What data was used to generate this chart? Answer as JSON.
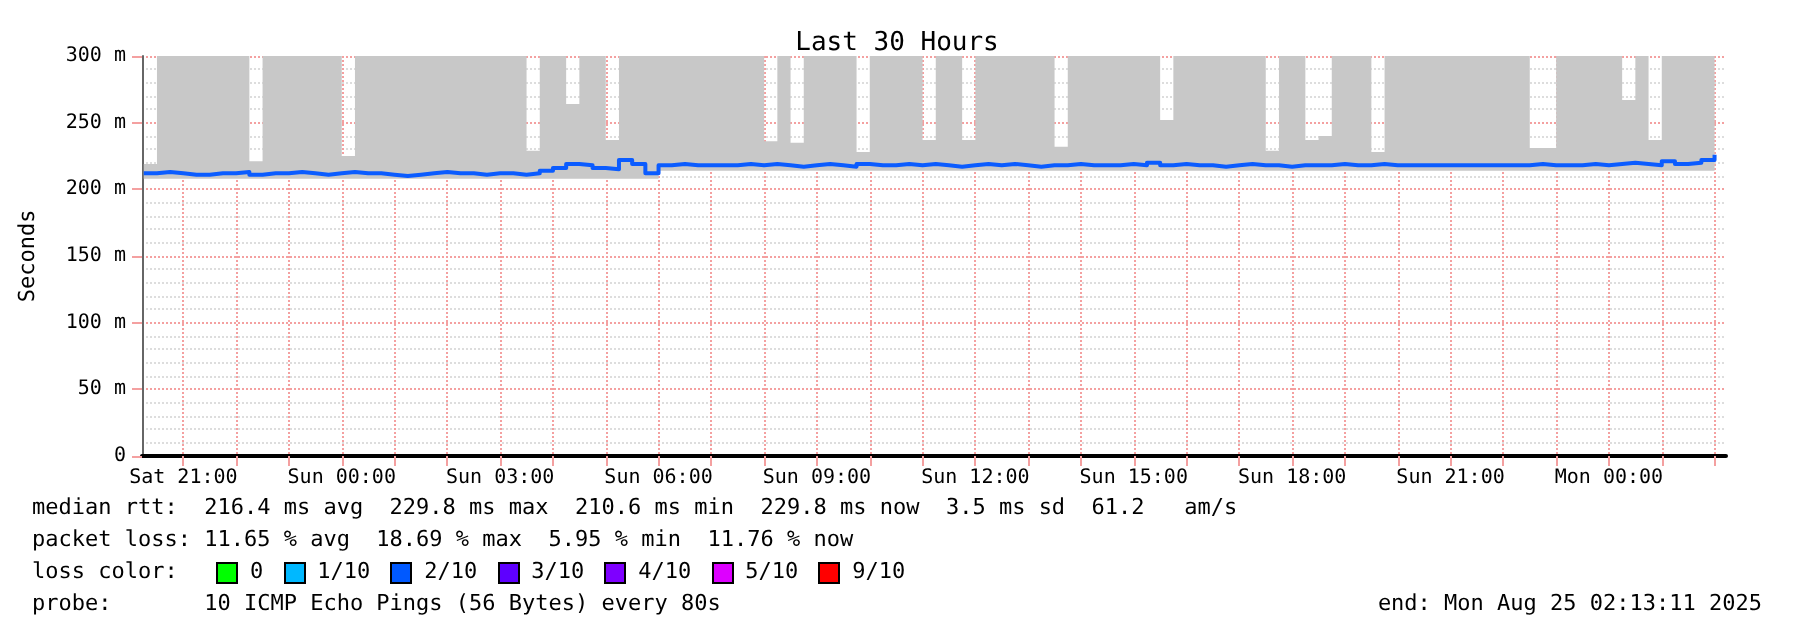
{
  "chart_data": {
    "type": "step",
    "title": "Last 30 Hours",
    "ylabel": "Seconds",
    "x": [
      "2025-08-23T20:15",
      "2025-08-23T20:30",
      "2025-08-23T20:45",
      "2025-08-23T21:00",
      "2025-08-23T21:15",
      "2025-08-23T21:30",
      "2025-08-23T21:45",
      "2025-08-23T22:00",
      "2025-08-23T22:15",
      "2025-08-23T22:30",
      "2025-08-23T22:45",
      "2025-08-23T23:00",
      "2025-08-23T23:15",
      "2025-08-23T23:30",
      "2025-08-23T23:45",
      "2025-08-24T00:00",
      "2025-08-24T00:15",
      "2025-08-24T00:30",
      "2025-08-24T00:45",
      "2025-08-24T01:00",
      "2025-08-24T01:15",
      "2025-08-24T01:30",
      "2025-08-24T01:45",
      "2025-08-24T02:00",
      "2025-08-24T02:15",
      "2025-08-24T02:30",
      "2025-08-24T02:45",
      "2025-08-24T03:00",
      "2025-08-24T03:15",
      "2025-08-24T03:30",
      "2025-08-24T03:45",
      "2025-08-24T04:00",
      "2025-08-24T04:15",
      "2025-08-24T04:30",
      "2025-08-24T04:45",
      "2025-08-24T05:00",
      "2025-08-24T05:15",
      "2025-08-24T05:30",
      "2025-08-24T05:45",
      "2025-08-24T06:00",
      "2025-08-24T06:15",
      "2025-08-24T06:30",
      "2025-08-24T06:45",
      "2025-08-24T07:00",
      "2025-08-24T07:15",
      "2025-08-24T07:30",
      "2025-08-24T07:45",
      "2025-08-24T08:00",
      "2025-08-24T08:15",
      "2025-08-24T08:30",
      "2025-08-24T08:45",
      "2025-08-24T09:00",
      "2025-08-24T09:15",
      "2025-08-24T09:30",
      "2025-08-24T09:45",
      "2025-08-24T10:00",
      "2025-08-24T10:15",
      "2025-08-24T10:30",
      "2025-08-24T10:45",
      "2025-08-24T11:00",
      "2025-08-24T11:15",
      "2025-08-24T11:30",
      "2025-08-24T11:45",
      "2025-08-24T12:00",
      "2025-08-24T12:15",
      "2025-08-24T12:30",
      "2025-08-24T12:45",
      "2025-08-24T13:00",
      "2025-08-24T13:15",
      "2025-08-24T13:30",
      "2025-08-24T13:45",
      "2025-08-24T14:00",
      "2025-08-24T14:15",
      "2025-08-24T14:30",
      "2025-08-24T14:45",
      "2025-08-24T15:00",
      "2025-08-24T15:15",
      "2025-08-24T15:30",
      "2025-08-24T15:45",
      "2025-08-24T16:00",
      "2025-08-24T16:15",
      "2025-08-24T16:30",
      "2025-08-24T16:45",
      "2025-08-24T17:00",
      "2025-08-24T17:15",
      "2025-08-24T17:30",
      "2025-08-24T17:45",
      "2025-08-24T18:00",
      "2025-08-24T18:15",
      "2025-08-24T18:30",
      "2025-08-24T18:45",
      "2025-08-24T19:00",
      "2025-08-24T19:15",
      "2025-08-24T19:30",
      "2025-08-24T19:45",
      "2025-08-24T20:00",
      "2025-08-24T20:15",
      "2025-08-24T20:30",
      "2025-08-24T20:45",
      "2025-08-24T21:00",
      "2025-08-24T21:15",
      "2025-08-24T21:30",
      "2025-08-24T21:45",
      "2025-08-24T22:00",
      "2025-08-24T22:15",
      "2025-08-24T22:30",
      "2025-08-24T22:45",
      "2025-08-24T23:00",
      "2025-08-24T23:15",
      "2025-08-24T23:30",
      "2025-08-24T23:45",
      "2025-08-25T00:00",
      "2025-08-25T00:15",
      "2025-08-25T00:30",
      "2025-08-25T00:45",
      "2025-08-25T01:00",
      "2025-08-25T01:15",
      "2025-08-25T01:30",
      "2025-08-25T01:45",
      "2025-08-25T02:00"
    ],
    "series": [
      {
        "color": "#0b5cff",
        "values": [
          212,
          213,
          212,
          211,
          211,
          212,
          212,
          213,
          211,
          212,
          212,
          213,
          212,
          211,
          212,
          213,
          212,
          212,
          211,
          210,
          211,
          212,
          213,
          212,
          212,
          211,
          212,
          212,
          211,
          212,
          214,
          216,
          219,
          218,
          216,
          215,
          222,
          219,
          212,
          218,
          219,
          218,
          218,
          218,
          218,
          219,
          218,
          219,
          218,
          217,
          218,
          219,
          218,
          217,
          219,
          218,
          218,
          219,
          218,
          219,
          218,
          217,
          218,
          219,
          218,
          219,
          218,
          217,
          218,
          218,
          219,
          218,
          218,
          218,
          219,
          218,
          220,
          218,
          219,
          218,
          218,
          217,
          218,
          219,
          218,
          218,
          217,
          218,
          218,
          218,
          219,
          218,
          218,
          219,
          218,
          218,
          218,
          218,
          218,
          218,
          218,
          218,
          218,
          218,
          218,
          219,
          218,
          218,
          218,
          219,
          218,
          219,
          220,
          219,
          218,
          221,
          219,
          220,
          222,
          226
        ],
        "lower": [
          208,
          208,
          208,
          208,
          208,
          208,
          208,
          208,
          208,
          208,
          208,
          208,
          208,
          208,
          208,
          208,
          208,
          208,
          208,
          208,
          208,
          208,
          208,
          208,
          208,
          208,
          208,
          208,
          208,
          208,
          208,
          208,
          208,
          208,
          208,
          208,
          208,
          208,
          208,
          214,
          214,
          214,
          214,
          214,
          214,
          214,
          214,
          214,
          214,
          214,
          214,
          214,
          214,
          214,
          214,
          214,
          214,
          214,
          214,
          214,
          214,
          214,
          214,
          214,
          214,
          214,
          214,
          214,
          214,
          214,
          214,
          214,
          214,
          214,
          214,
          214,
          214,
          214,
          214,
          214,
          214,
          214,
          214,
          214,
          214,
          214,
          214,
          214,
          214,
          214,
          214,
          214,
          214,
          214,
          214,
          214,
          214,
          214,
          214,
          214,
          214,
          214,
          214,
          214,
          214,
          214,
          214,
          214,
          214,
          214,
          214,
          214,
          214,
          214,
          214,
          214,
          214,
          214,
          214,
          214
        ],
        "upper": [
          219,
          300,
          300,
          300,
          300,
          300,
          300,
          300,
          221,
          300,
          300,
          300,
          300,
          300,
          300,
          225,
          300,
          300,
          300,
          300,
          300,
          300,
          300,
          300,
          300,
          300,
          300,
          300,
          300,
          229,
          300,
          300,
          264,
          300,
          300,
          237,
          300,
          300,
          300,
          300,
          300,
          300,
          300,
          300,
          300,
          300,
          300,
          236,
          300,
          235,
          300,
          300,
          300,
          300,
          228,
          300,
          300,
          300,
          300,
          237,
          300,
          300,
          237,
          300,
          300,
          300,
          300,
          300,
          300,
          232,
          300,
          300,
          300,
          300,
          300,
          300,
          300,
          252,
          300,
          300,
          300,
          300,
          300,
          300,
          300,
          229,
          300,
          300,
          237,
          240,
          300,
          300,
          300,
          228,
          300,
          300,
          300,
          300,
          300,
          300,
          300,
          300,
          300,
          300,
          300,
          231,
          231,
          300,
          300,
          300,
          300,
          300,
          267,
          300,
          237,
          300,
          300,
          300,
          300,
          300
        ]
      }
    ],
    "xlim": [
      "2025-08-23T20:13",
      "2025-08-25T02:13"
    ],
    "xticks": [
      {
        "value": "2025-08-23T21:00",
        "label": "Sat 21:00"
      },
      {
        "value": "2025-08-23T22:00",
        "label": null
      },
      {
        "value": "2025-08-23T23:00",
        "label": null
      },
      {
        "value": "2025-08-24T00:00",
        "label": "Sun 00:00"
      },
      {
        "value": "2025-08-24T01:00",
        "label": null
      },
      {
        "value": "2025-08-24T02:00",
        "label": null
      },
      {
        "value": "2025-08-24T03:00",
        "label": "Sun 03:00"
      },
      {
        "value": "2025-08-24T04:00",
        "label": null
      },
      {
        "value": "2025-08-24T05:00",
        "label": null
      },
      {
        "value": "2025-08-24T06:00",
        "label": "Sun 06:00"
      },
      {
        "value": "2025-08-24T07:00",
        "label": null
      },
      {
        "value": "2025-08-24T08:00",
        "label": null
      },
      {
        "value": "2025-08-24T09:00",
        "label": "Sun 09:00"
      },
      {
        "value": "2025-08-24T10:00",
        "label": null
      },
      {
        "value": "2025-08-24T11:00",
        "label": null
      },
      {
        "value": "2025-08-24T12:00",
        "label": "Sun 12:00"
      },
      {
        "value": "2025-08-24T13:00",
        "label": null
      },
      {
        "value": "2025-08-24T14:00",
        "label": null
      },
      {
        "value": "2025-08-24T15:00",
        "label": "Sun 15:00"
      },
      {
        "value": "2025-08-24T16:00",
        "label": null
      },
      {
        "value": "2025-08-24T17:00",
        "label": null
      },
      {
        "value": "2025-08-24T18:00",
        "label": "Sun 18:00"
      },
      {
        "value": "2025-08-24T19:00",
        "label": null
      },
      {
        "value": "2025-08-24T20:00",
        "label": null
      },
      {
        "value": "2025-08-24T21:00",
        "label": "Sun 21:00"
      },
      {
        "value": "2025-08-24T22:00",
        "label": null
      },
      {
        "value": "2025-08-24T23:00",
        "label": null
      },
      {
        "value": "2025-08-25T00:00",
        "label": "Mon 00:00"
      },
      {
        "value": "2025-08-25T01:00",
        "label": null
      },
      {
        "value": "2025-08-25T02:00",
        "label": null
      }
    ],
    "ylim": [
      0,
      300
    ],
    "yticks": [
      0,
      {
        "value": 50,
        "label": "50 m"
      },
      {
        "value": 100,
        "label": "100 m"
      },
      {
        "value": 150,
        "label": "150 m"
      },
      {
        "value": 200,
        "label": "200 m"
      },
      {
        "value": 250,
        "label": "250 m"
      },
      {
        "value": 300,
        "label": "300 m"
      }
    ],
    "grid": true,
    "annotations": [
      "median rtt:  216.4 ms avg  229.8 ms max  210.6 ms min  229.8 ms now  3.5 ms sd  61.2   am/s",
      "packet loss: 11.65 % avg  18.69 % max  5.95 % min  11.76 % now",
      "loss color:",
      "0",
      "1/10",
      "2/10",
      "3/10",
      "4/10",
      "5/10",
      "9/10",
      "probe:       10 ICMP Echo Pings (56 Bytes) every 80s",
      "end: Mon Aug 25 02:13:11 2025"
    ]
  }
}
